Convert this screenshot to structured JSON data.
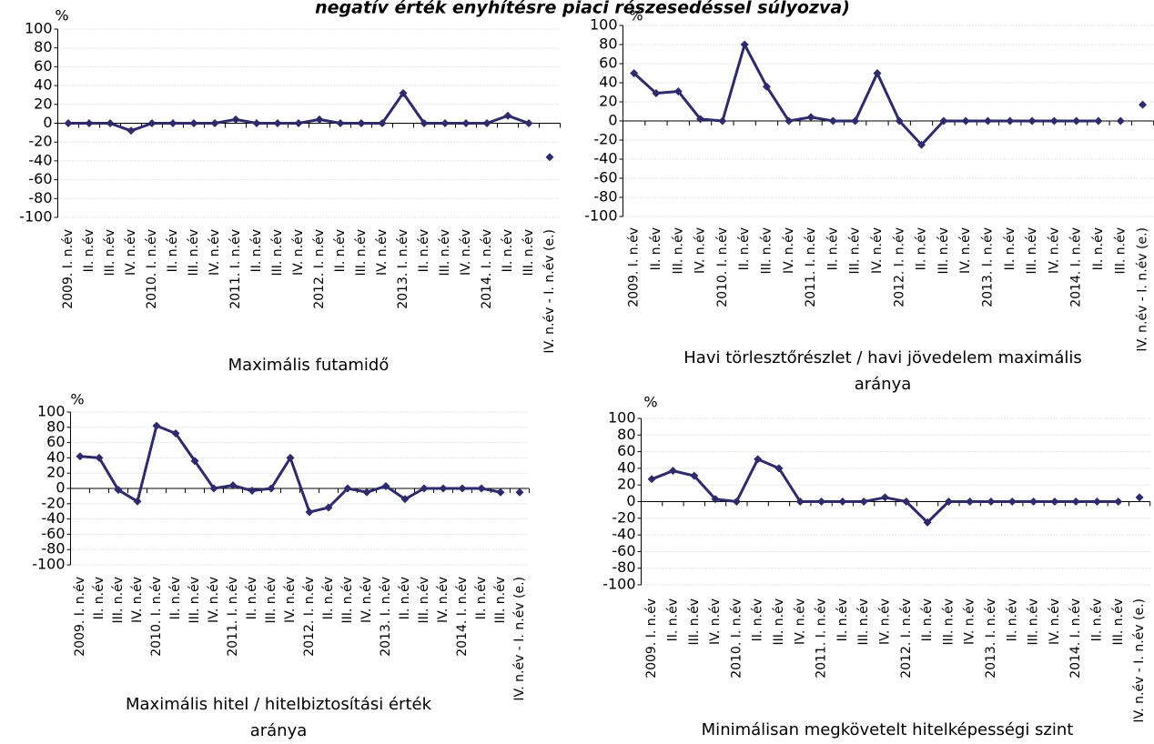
{
  "title": "negatív érték enyhítésre piaci részesedéssel súlyozva)",
  "chart_data": [
    {
      "type": "line",
      "title": [
        "Maximális futamidő"
      ],
      "unit": "%",
      "categories": [
        "2009. I. n.év",
        "II. n.év",
        "III. n.év",
        "IV. n.év",
        "2010. I. n.év",
        "II. n.év",
        "III. n.év",
        "IV. n.év",
        "2011. I. n.év",
        "II. n.év",
        "III. n.év",
        "IV. n.év",
        "2012. I. n.év",
        "II. n.év",
        "III. n.év",
        "IV. n.év",
        "2013. I. n.év",
        "II. n.év",
        "III. n.év",
        "IV. n.év",
        "2014. I. n.év",
        "II. n.év",
        "III. n.év",
        "IV. n.év - I. n.év (e.)"
      ],
      "series": [
        {
          "color": "#2e2a6b",
          "line": true,
          "values": [
            0,
            0,
            0,
            -8,
            0,
            0,
            0,
            0,
            4,
            0,
            0,
            0,
            4,
            0,
            0,
            0,
            32,
            0,
            0,
            0,
            0,
            8,
            0,
            null
          ]
        },
        {
          "color": "#2e2a6b",
          "line": false,
          "values": [
            null,
            null,
            null,
            null,
            null,
            null,
            null,
            null,
            null,
            null,
            null,
            null,
            null,
            null,
            null,
            null,
            null,
            null,
            null,
            null,
            null,
            null,
            null,
            -36
          ]
        }
      ],
      "ylim": [
        -100,
        100
      ],
      "yticks": [
        -100,
        -80,
        -60,
        -40,
        -20,
        0,
        20,
        40,
        60,
        80,
        100
      ],
      "grid": true
    },
    {
      "type": "line",
      "title": [
        "Havi törlesztőrészlet / havi jövedelem maximális",
        "aránya"
      ],
      "unit": "%",
      "categories": [
        "2009. I. n.év",
        "II. n.év",
        "III. n.év",
        "IV. n.év",
        "2010. I. n.év",
        "II. n.év",
        "III. n.év",
        "IV. n.év",
        "2011. I. n.év",
        "II. n.év",
        "III. n.év",
        "IV. n.év",
        "2012. I. n.év",
        "II. n.év",
        "III. n.év",
        "IV. n.év",
        "2013. I. n.év",
        "II. n.év",
        "III. n.év",
        "IV. n.év",
        "2014. I. n.év",
        "II. n.év",
        "III. n.év",
        "IV. n.év - I. n.év (e.)"
      ],
      "series": [
        {
          "color": "#2e2a6b",
          "line": true,
          "values": [
            50,
            29,
            31,
            2,
            0,
            80,
            36,
            0,
            4,
            0,
            0,
            50,
            0,
            -25,
            0,
            0,
            0,
            0,
            0,
            0,
            0,
            0,
            null,
            null
          ]
        },
        {
          "color": "#2e2a6b",
          "line": false,
          "values": [
            null,
            null,
            null,
            null,
            null,
            null,
            null,
            null,
            null,
            null,
            null,
            null,
            null,
            null,
            null,
            null,
            null,
            null,
            null,
            null,
            null,
            null,
            0,
            17
          ]
        }
      ],
      "ylim": [
        -100,
        100
      ],
      "yticks": [
        -100,
        -80,
        -60,
        -40,
        -20,
        0,
        20,
        40,
        60,
        80,
        100
      ],
      "grid": true
    },
    {
      "type": "line",
      "title": [
        "Maximális hitel / hitelbiztosítási érték",
        "aránya"
      ],
      "unit": "%",
      "categories": [
        "2009. I. n.év",
        "II. n.év",
        "III. n.év",
        "IV. n.év",
        "2010. I. n.év",
        "II. n.év",
        "III. n.év",
        "IV. n.év",
        "2011. I. n.év",
        "II. n.év",
        "III. n.év",
        "IV. n.év",
        "2012. I. n.év",
        "II. n.év",
        "III. n.év",
        "IV. n.év",
        "2013. I. n.év",
        "II. n.év",
        "III. n.év",
        "IV. n.év",
        "2014. I. n.év",
        "II. n.év",
        "III. n.év",
        "IV. n.év - I. n.év (e.)"
      ],
      "series": [
        {
          "color": "#2e2a6b",
          "line": true,
          "values": [
            42,
            40,
            -2,
            -17,
            82,
            72,
            36,
            0,
            4,
            -3,
            0,
            40,
            -31,
            -25,
            0,
            -5,
            3,
            -14,
            0,
            0,
            0,
            0,
            -5,
            null
          ]
        },
        {
          "color": "#2e2a6b",
          "line": false,
          "values": [
            null,
            null,
            null,
            null,
            null,
            null,
            null,
            null,
            null,
            null,
            null,
            null,
            null,
            null,
            null,
            null,
            null,
            null,
            null,
            null,
            null,
            null,
            null,
            -5
          ]
        }
      ],
      "ylim": [
        -100,
        100
      ],
      "yticks": [
        -100,
        -80,
        -60,
        -40,
        -20,
        0,
        20,
        40,
        60,
        80,
        100
      ],
      "grid": true
    },
    {
      "type": "line",
      "title": [
        "Minimálisan megkövetelt hitelképességi szint"
      ],
      "unit": "%",
      "categories": [
        "2009. I. n.év",
        "II. n.év",
        "III. n.év",
        "IV. n.év",
        "2010. I. n.év",
        "II. n.év",
        "III. n.év",
        "IV. n.év",
        "2011. I. n.év",
        "II. n.év",
        "III. n.év",
        "IV. n.év",
        "2012. I. n.év",
        "II. n.év",
        "III. n.év",
        "IV. n.év",
        "2013. I. n.év",
        "II. n.év",
        "III. n.év",
        "IV. n.év",
        "2014. I. n.év",
        "II. n.év",
        "III. n.év",
        "IV. n.év - I. n.év (e.)"
      ],
      "series": [
        {
          "color": "#2e2a6b",
          "line": true,
          "values": [
            27,
            37,
            31,
            3,
            0,
            51,
            40,
            0,
            0,
            0,
            0,
            5,
            0,
            -25,
            0,
            0,
            0,
            0,
            0,
            0,
            0,
            0,
            0,
            null
          ]
        },
        {
          "color": "#2e2a6b",
          "line": false,
          "values": [
            null,
            null,
            null,
            null,
            null,
            null,
            null,
            null,
            null,
            null,
            null,
            null,
            null,
            null,
            null,
            null,
            null,
            null,
            null,
            null,
            null,
            null,
            null,
            5
          ]
        }
      ],
      "ylim": [
        -100,
        100
      ],
      "yticks": [
        -100,
        -80,
        -60,
        -40,
        -20,
        0,
        20,
        40,
        60,
        80,
        100
      ],
      "grid": true
    }
  ]
}
